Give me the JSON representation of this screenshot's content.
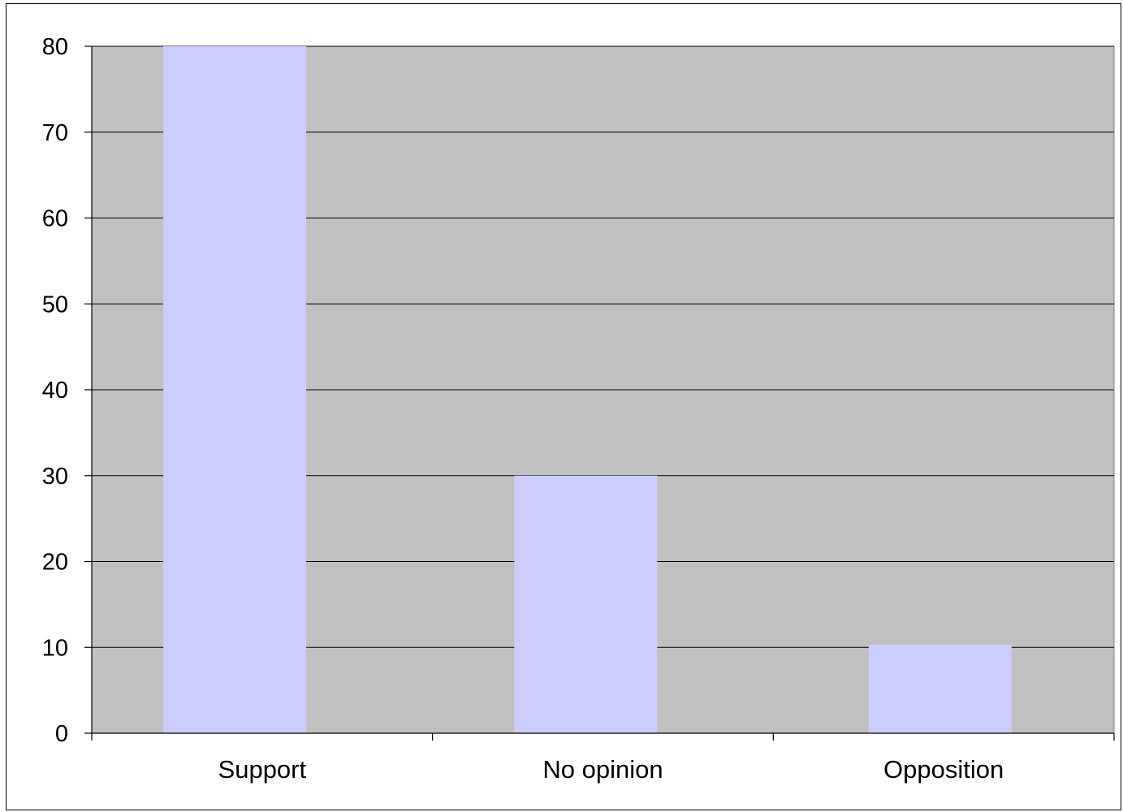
{
  "chart_data": {
    "type": "bar",
    "title": "",
    "xlabel": "",
    "ylabel": "",
    "categories": [
      "Support",
      "No opinion",
      "Opposition"
    ],
    "values": [
      80,
      30,
      10.3
    ],
    "ylim": [
      0,
      80
    ],
    "yticks": [
      0,
      10,
      20,
      30,
      40,
      50,
      60,
      70,
      80
    ],
    "grid": true,
    "legend": "none",
    "colors": {
      "plot_background": "#c0c0c0",
      "bar": "#ccccff",
      "gridline": "#000000"
    }
  }
}
